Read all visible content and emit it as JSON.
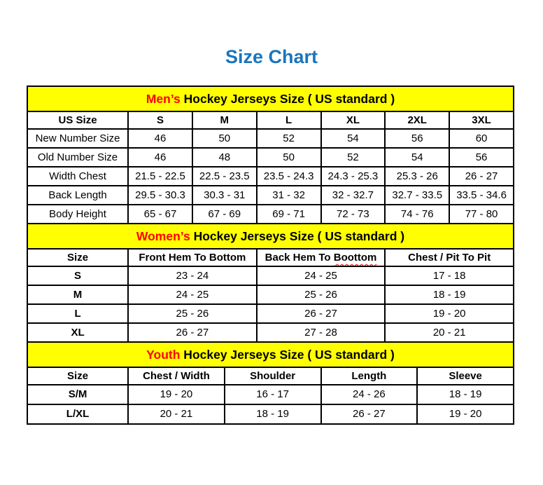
{
  "page": {
    "title": "Size Chart",
    "title_color": "#1b75bc",
    "banner_background": "#ffff00",
    "highlight_color": "#ff0000",
    "border_color": "#000000"
  },
  "chart_data": [
    {
      "type": "table",
      "section": "mens",
      "title_highlight": "Men’s",
      "title_rest": " Hockey Jerseys Size ( US standard )",
      "columns": [
        "US Size",
        "S",
        "M",
        "L",
        "XL",
        "2XL",
        "3XL"
      ],
      "rows": [
        [
          "New Number Size",
          "46",
          "50",
          "52",
          "54",
          "56",
          "60"
        ],
        [
          "Old Number Size",
          "46",
          "48",
          "50",
          "52",
          "54",
          "56"
        ],
        [
          "Width Chest",
          "21.5 - 22.5",
          "22.5 - 23.5",
          "23.5 - 24.3",
          "24.3 - 25.3",
          "25.3 - 26",
          "26 - 27"
        ],
        [
          "Back Length",
          "29.5 - 30.3",
          "30.3 - 31",
          "31 - 32",
          "32 - 32.7",
          "32.7 - 33.5",
          "33.5 - 34.6"
        ],
        [
          "Body Height",
          "65 - 67",
          "67 - 69",
          "69 - 71",
          "72 - 73",
          "74 - 76",
          "77 - 80"
        ]
      ]
    },
    {
      "type": "table",
      "section": "womens",
      "title_highlight": "Women’s",
      "title_rest": " Hockey Jerseys Size ( US standard )",
      "columns": [
        "Size",
        "Front Hem To Bottom",
        {
          "prefix": "Back Hem To ",
          "misspelled": "Boottom"
        },
        "Chest / Pit To Pit"
      ],
      "rows": [
        [
          "S",
          "23 - 24",
          "24 - 25",
          "17 - 18"
        ],
        [
          "M",
          "24 - 25",
          "25 - 26",
          "18 - 19"
        ],
        [
          "L",
          "25 - 26",
          "26 - 27",
          "19 - 20"
        ],
        [
          "XL",
          "26 - 27",
          "27 - 28",
          "20 - 21"
        ]
      ]
    },
    {
      "type": "table",
      "section": "youth",
      "title_highlight": "Youth",
      "title_rest": " Hockey Jerseys Size ( US standard )",
      "columns": [
        "Size",
        "Chest / Width",
        "Shoulder",
        "Length",
        "Sleeve"
      ],
      "rows": [
        [
          "S/M",
          "19 - 20",
          "16 - 17",
          "24 - 26",
          "18 - 19"
        ],
        [
          "L/XL",
          "20 - 21",
          "18 - 19",
          "26 - 27",
          "19 - 20"
        ]
      ]
    }
  ]
}
